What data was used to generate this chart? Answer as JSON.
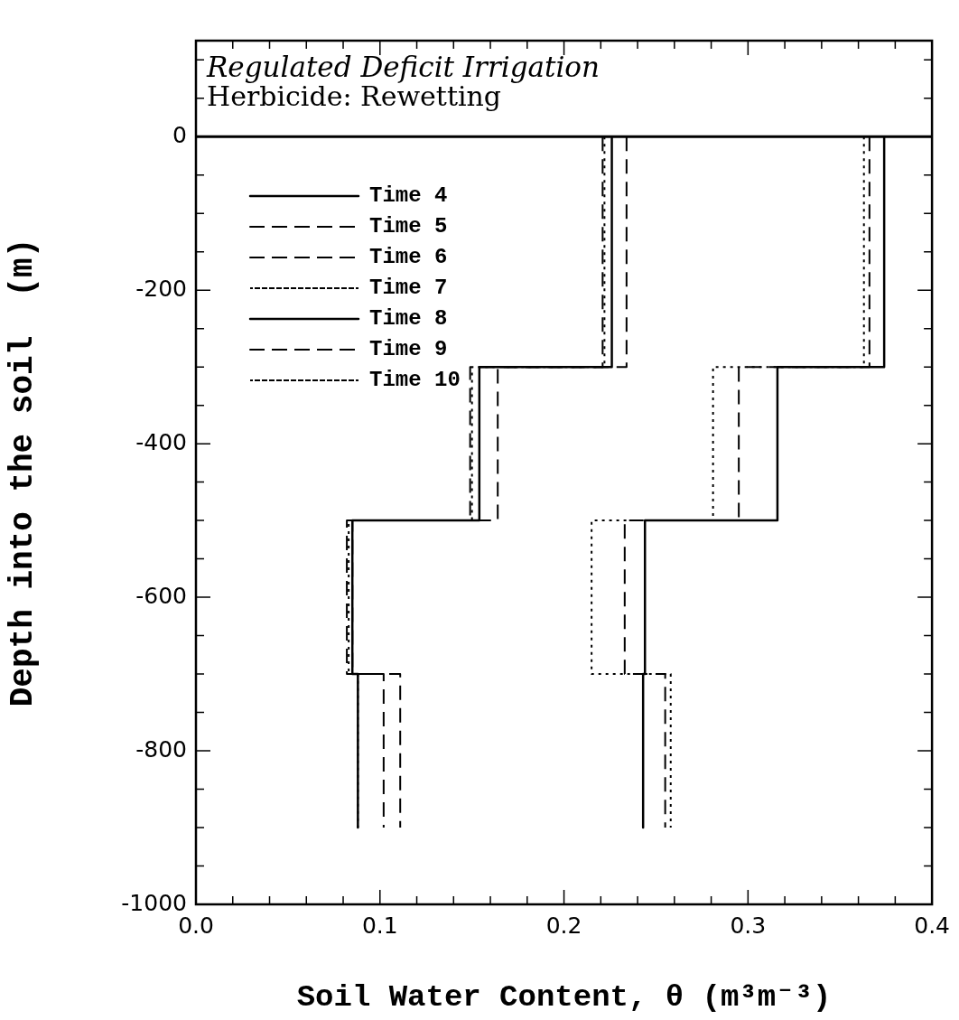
{
  "chart_data": {
    "type": "line",
    "title": "Regulated Deficit Irrigation",
    "subtitle": "Herbicide: Rewetting",
    "xlabel": "Soil Water Content, θ (m³m⁻³)",
    "ylabel": "Depth into the soil  (m)",
    "xlim": [
      0,
      0.4
    ],
    "xticks": [
      {
        "value": 0,
        "label": "0.0"
      },
      {
        "value": 0.02,
        "label": null
      },
      {
        "value": 0.04,
        "label": null
      },
      {
        "value": 0.06,
        "label": null
      },
      {
        "value": 0.08,
        "label": null
      },
      {
        "value": 0.1,
        "label": "0.1"
      },
      {
        "value": 0.12,
        "label": null
      },
      {
        "value": 0.14,
        "label": null
      },
      {
        "value": 0.16,
        "label": null
      },
      {
        "value": 0.18,
        "label": null
      },
      {
        "value": 0.2,
        "label": "0.2"
      },
      {
        "value": 0.22,
        "label": null
      },
      {
        "value": 0.24,
        "label": null
      },
      {
        "value": 0.26,
        "label": null
      },
      {
        "value": 0.28,
        "label": null
      },
      {
        "value": 0.3,
        "label": "0.3"
      },
      {
        "value": 0.32,
        "label": null
      },
      {
        "value": 0.34,
        "label": null
      },
      {
        "value": 0.36,
        "label": null
      },
      {
        "value": 0.38,
        "label": null
      },
      {
        "value": 0.4,
        "label": "0.4"
      }
    ],
    "ylim": [
      -1000,
      125
    ],
    "yticks": [
      -1000,
      {
        "value": -950,
        "label": null
      },
      {
        "value": -900,
        "label": null
      },
      {
        "value": -850,
        "label": null
      },
      -800,
      {
        "value": -750,
        "label": null
      },
      {
        "value": -700,
        "label": null
      },
      {
        "value": -650,
        "label": null
      },
      -600,
      {
        "value": -550,
        "label": null
      },
      {
        "value": -500,
        "label": null
      },
      {
        "value": -450,
        "label": null
      },
      -400,
      {
        "value": -350,
        "label": null
      },
      {
        "value": -300,
        "label": null
      },
      {
        "value": -250,
        "label": null
      },
      -200,
      {
        "value": -150,
        "label": null
      },
      {
        "value": -100,
        "label": null
      },
      {
        "value": -50,
        "label": null
      },
      0,
      {
        "value": 50,
        "label": null
      },
      {
        "value": 100,
        "label": null
      }
    ],
    "ref_lines": [
      {
        "axis": "y",
        "value": 0,
        "label": null
      }
    ],
    "grid": false,
    "legend": "top left",
    "marker": "none",
    "series": [
      {
        "name": "Time 4",
        "color": "#000000",
        "line_style": "solid",
        "x": [
          0.226,
          0.226,
          0.154,
          0.154,
          0.085,
          0.085,
          0.088,
          0.088
        ],
        "values": [
          0,
          -300,
          -300,
          -500,
          -500,
          -700,
          -700,
          -900
        ]
      },
      {
        "name": "Time 5",
        "color": "#000000",
        "line_style": "dashed",
        "x": [
          0.234,
          0.234,
          0.164,
          0.164,
          0.085,
          0.085,
          0.102,
          0.102
        ],
        "values": [
          0,
          -300,
          -300,
          -500,
          -500,
          -700,
          -700,
          -900
        ]
      },
      {
        "name": "Time 6",
        "color": "#000000",
        "line_style": "dashed",
        "x": [
          0.221,
          0.221,
          0.149,
          0.149,
          0.082,
          0.082,
          0.111,
          0.111
        ],
        "values": [
          0,
          -300,
          -300,
          -500,
          -500,
          -700,
          -700,
          -900
        ]
      },
      {
        "name": "Time 7",
        "color": "#000000",
        "line_style": "dotted",
        "x": [
          0.222,
          0.222,
          0.15,
          0.15,
          0.083,
          0.083,
          0.088,
          0.088
        ],
        "values": [
          0,
          -300,
          -300,
          -500,
          -500,
          -700,
          -700,
          -900
        ]
      },
      {
        "name": "Time 8",
        "color": "#000000",
        "line_style": "solid",
        "x": [
          0.374,
          0.374,
          0.316,
          0.316,
          0.244,
          0.244,
          0.243,
          0.243
        ],
        "values": [
          0,
          -300,
          -300,
          -500,
          -500,
          -700,
          -700,
          -900
        ]
      },
      {
        "name": "Time 9",
        "color": "#000000",
        "line_style": "dashed",
        "x": [
          0.366,
          0.366,
          0.295,
          0.295,
          0.233,
          0.233,
          0.255,
          0.255
        ],
        "values": [
          0,
          -300,
          -300,
          -500,
          -500,
          -700,
          -700,
          -900
        ]
      },
      {
        "name": "Time 10",
        "color": "#000000",
        "line_style": "dotted",
        "x": [
          0.363,
          0.363,
          0.281,
          0.281,
          0.215,
          0.215,
          0.258,
          0.258
        ],
        "values": [
          0,
          -300,
          -300,
          -500,
          -500,
          -700,
          -700,
          -900
        ]
      }
    ]
  }
}
